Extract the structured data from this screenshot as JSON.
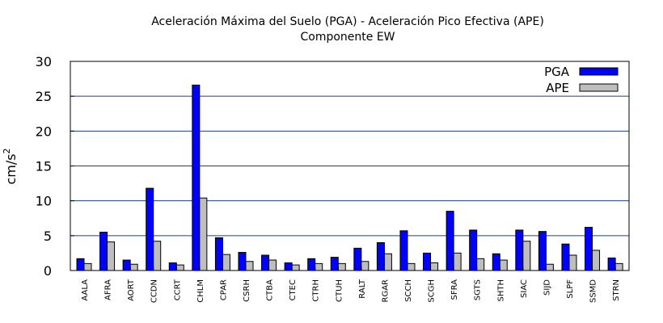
{
  "chart_data": {
    "type": "bar",
    "title": "Aceleración Máxima del Suelo (PGA) -  Aceleración Pico Efectiva (APE)",
    "subtitle": "Componente EW",
    "ylabel": "cm/s",
    "ylabel_sup": "2",
    "xlabel": "",
    "ylim": [
      0,
      30
    ],
    "yticks": [
      0,
      5,
      10,
      15,
      20,
      25,
      30
    ],
    "grid": true,
    "legend_position": "top-right",
    "categories": [
      "AALA",
      "AFRA",
      "AORT",
      "CCDN",
      "CCRT",
      "CHLM",
      "CPAR",
      "CSRH",
      "CTBA",
      "CTEC",
      "CTRH",
      "CTUH",
      "RALT",
      "RGAR",
      "SCCH",
      "SCGH",
      "SFRA",
      "SGTS",
      "SHTH",
      "SIAC",
      "SIJD",
      "SLPF",
      "SSMD",
      "STRN"
    ],
    "series": [
      {
        "name": "PGA",
        "color": "#0000ff",
        "values": [
          1.7,
          5.5,
          1.5,
          11.8,
          1.1,
          26.6,
          4.7,
          2.6,
          2.2,
          1.1,
          1.7,
          1.9,
          3.2,
          4.0,
          5.7,
          2.5,
          8.5,
          5.8,
          2.4,
          5.8,
          5.6,
          3.8,
          6.2,
          1.8
        ]
      },
      {
        "name": "APE",
        "color": "#bebebe",
        "values": [
          1.0,
          4.1,
          0.9,
          4.2,
          0.8,
          10.4,
          2.3,
          1.3,
          1.5,
          0.8,
          1.0,
          1.0,
          1.3,
          2.4,
          1.0,
          1.1,
          2.5,
          1.7,
          1.5,
          4.2,
          0.9,
          2.2,
          2.9,
          1.0
        ]
      }
    ]
  }
}
